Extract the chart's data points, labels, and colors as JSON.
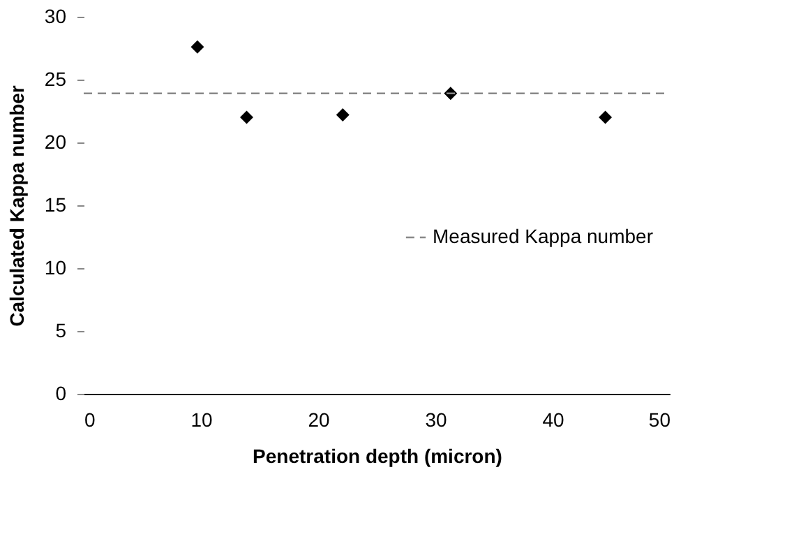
{
  "chart_data": {
    "type": "scatter",
    "xlabel": "Penetration depth (micron)",
    "ylabel": "Calculated Kappa number",
    "x": [
      9.7,
      13.9,
      22.1,
      31.3,
      44.5
    ],
    "series": [
      {
        "color": "#000000",
        "values": [
          27.6,
          22.0,
          22.2,
          23.9,
          22.0
        ]
      }
    ],
    "marker": "diamond",
    "xlim": [
      0,
      50
    ],
    "xticks": [
      0,
      10,
      20,
      30,
      40,
      50
    ],
    "ylim": [
      0,
      30
    ],
    "yticks": [
      0,
      5,
      10,
      15,
      20,
      25,
      30
    ],
    "ref_lines": [
      {
        "axis": "y",
        "value": 23.9,
        "label": "Measured Kappa number",
        "color": "#888888",
        "line_style": "dashed"
      }
    ],
    "grid": false,
    "legend": "bottom right"
  }
}
